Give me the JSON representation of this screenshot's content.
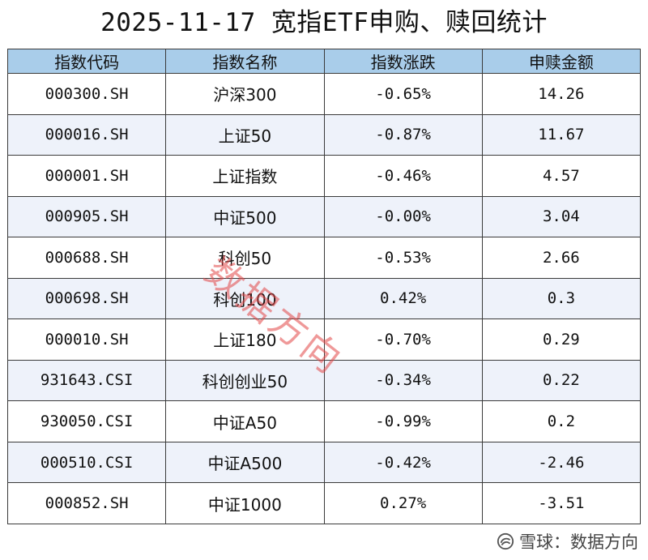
{
  "title": "2025-11-17 宽指ETF申购、赎回统计",
  "table": {
    "headers": [
      "指数代码",
      "指数名称",
      "指数涨跌",
      "申赎金额"
    ],
    "rows": [
      [
        "000300.SH",
        "沪深300",
        "-0.65%",
        "14.26"
      ],
      [
        "000016.SH",
        "上证50",
        "-0.87%",
        "11.67"
      ],
      [
        "000001.SH",
        "上证指数",
        "-0.46%",
        "4.57"
      ],
      [
        "000905.SH",
        "中证500",
        "-0.00%",
        "3.04"
      ],
      [
        "000688.SH",
        "科创50",
        "-0.53%",
        "2.66"
      ],
      [
        "000698.SH",
        "科创100",
        "0.42%",
        "0.3"
      ],
      [
        "000010.SH",
        "上证180",
        "-0.70%",
        "0.29"
      ],
      [
        "931643.CSI",
        "科创创业50",
        "-0.34%",
        "0.22"
      ],
      [
        "930050.CSI",
        "中证A50",
        "-0.99%",
        "0.2"
      ],
      [
        "000510.CSI",
        "中证A500",
        "-0.42%",
        "-2.46"
      ],
      [
        "000852.SH",
        "中证1000",
        "0.27%",
        "-3.51"
      ]
    ]
  },
  "watermark": "数据方向",
  "footer": {
    "logo_icon": "snowball-logo",
    "text": "雪球：数据方向"
  }
}
